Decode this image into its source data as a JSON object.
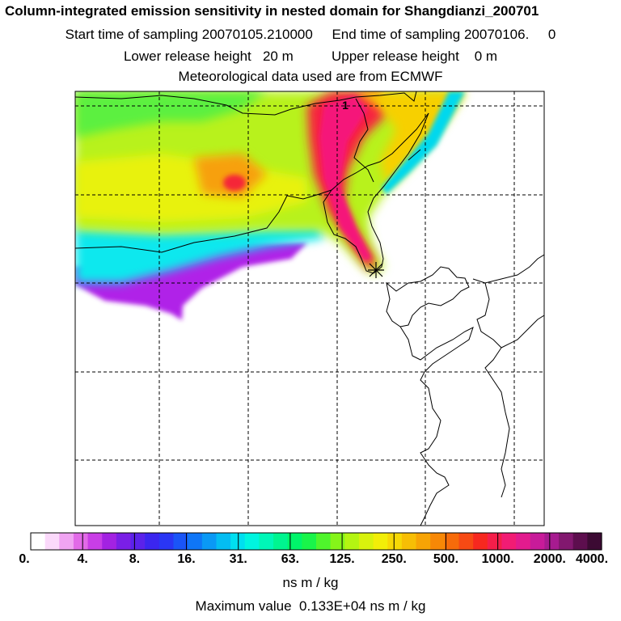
{
  "header": {
    "title": "Column-integrated emission sensitivity in nested domain for Shangdianzi_200701",
    "sampling_start_label": "Start time of sampling",
    "sampling_start": "20070105.210000",
    "sampling_end_label": "End time of sampling",
    "sampling_end": "20070106.     0",
    "lower_label": "Lower release height",
    "lower_value": "20 m",
    "upper_label": "Upper release height",
    "upper_value": "0 m",
    "met_line": "Meteorological data used are from ECMWF"
  },
  "map": {
    "marker_label": "1",
    "release_site": "Shangdianzi"
  },
  "colorbar": {
    "tick_labels": [
      "0.",
      "4.",
      "8.",
      "16.",
      "31.",
      "63.",
      "125.",
      "250.",
      "500.",
      "1000.",
      "2000.",
      "4000."
    ],
    "colors": [
      "#ffffff",
      "#fbd9fb",
      "#f0a4f2",
      "#e26ae8",
      "#c93ee6",
      "#a322e2",
      "#7a1fe6",
      "#5b22ea",
      "#3b26ef",
      "#2a36f4",
      "#1a55f7",
      "#0f76f7",
      "#0a99f5",
      "#04bdf2",
      "#00dff0",
      "#00f5e0",
      "#00f7b8",
      "#00f590",
      "#00f56a",
      "#19f54a",
      "#4ff52c",
      "#85f519",
      "#b4f512",
      "#d8f20d",
      "#f2ee08",
      "#f7d806",
      "#f7be05",
      "#f7a405",
      "#f78806",
      "#f76b0a",
      "#f74a14",
      "#f7281f",
      "#f51e4a",
      "#f21c74",
      "#e21b8e",
      "#c81b9a",
      "#a71b90",
      "#82186f",
      "#5d0e4e",
      "#3c0a33"
    ],
    "units": "ns m / kg",
    "max_label": "Maximum value",
    "max_value": "0.133E+04",
    "max_units": "ns m / kg"
  }
}
